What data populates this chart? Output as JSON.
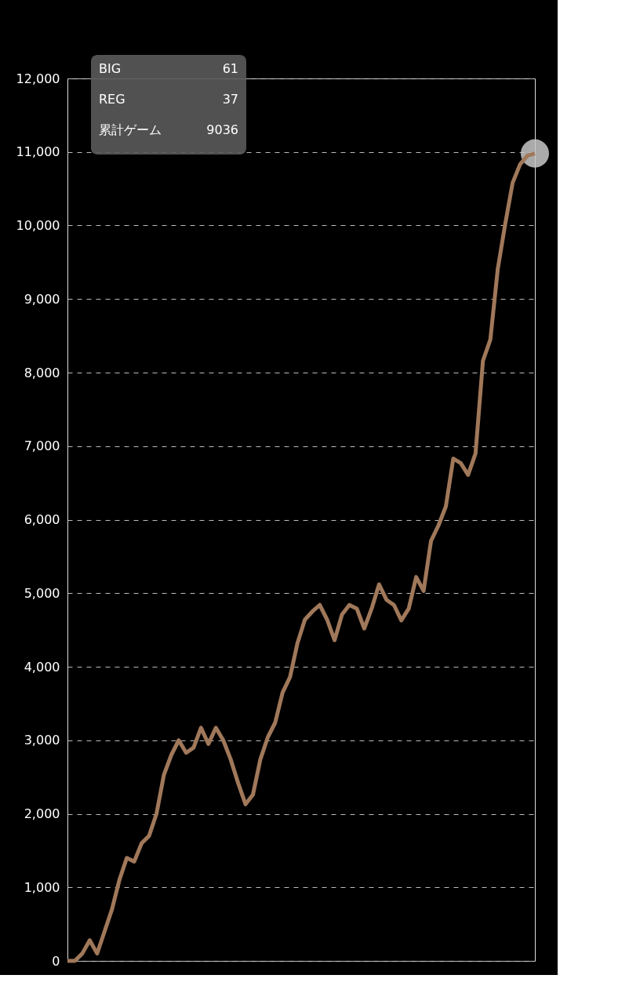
{
  "chart_data": {
    "type": "line",
    "categories": [
      null,
      null,
      null,
      null,
      null,
      null,
      null,
      null,
      null,
      null,
      null,
      null,
      null,
      null,
      null,
      null,
      null,
      null,
      null,
      null,
      null,
      null,
      null,
      null,
      null,
      null,
      null,
      null,
      null,
      null,
      null,
      null,
      null,
      null,
      null,
      null,
      null,
      null,
      null,
      null,
      null,
      null,
      null,
      null,
      null,
      null,
      null,
      null,
      null,
      null,
      null,
      null,
      null,
      null,
      null,
      null,
      null,
      null,
      null,
      null,
      null,
      null,
      null,
      null
    ],
    "series": [
      {
        "color": "#a0785a",
        "values": [
          0,
          0,
          100,
          280,
          100,
          400,
          700,
          1100,
          1400,
          1350,
          1600,
          1700,
          2000,
          2530,
          2800,
          3000,
          2830,
          2900,
          3170,
          2950,
          3170,
          3000,
          2740,
          2420,
          2130,
          2260,
          2740,
          3040,
          3240,
          3650,
          3860,
          4320,
          4640,
          4750,
          4840,
          4640,
          4360,
          4710,
          4840,
          4790,
          4520,
          4790,
          5120,
          4910,
          4840,
          4630,
          4790,
          5220,
          5030,
          5710,
          5920,
          6180,
          6830,
          6770,
          6610,
          6900,
          8160,
          8450,
          9410,
          10020,
          10580,
          10830,
          10950,
          10980
        ]
      },
      {
        "type": "scatter",
        "color": "#c8c8c8",
        "marker": "circle",
        "values": [
          null,
          null,
          null,
          null,
          null,
          null,
          null,
          null,
          null,
          null,
          null,
          null,
          null,
          null,
          null,
          null,
          null,
          null,
          null,
          null,
          null,
          null,
          null,
          null,
          null,
          null,
          null,
          null,
          null,
          null,
          null,
          null,
          null,
          null,
          null,
          null,
          null,
          null,
          null,
          null,
          null,
          null,
          null,
          null,
          null,
          null,
          null,
          null,
          null,
          null,
          null,
          null,
          null,
          null,
          null,
          null,
          null,
          null,
          null,
          null,
          null,
          null,
          null,
          10980
        ]
      }
    ],
    "ylim": [
      0,
      12000
    ],
    "yticks": [
      0,
      {
        "value": 1000,
        "label": "1,000"
      },
      {
        "value": 2000,
        "label": "2,000"
      },
      {
        "value": 3000,
        "label": "3,000"
      },
      {
        "value": 4000,
        "label": "4,000"
      },
      {
        "value": 5000,
        "label": "5,000"
      },
      {
        "value": 6000,
        "label": "6,000"
      },
      {
        "value": 7000,
        "label": "7,000"
      },
      {
        "value": 8000,
        "label": "8,000"
      },
      {
        "value": 9000,
        "label": "9,000"
      },
      {
        "value": 10000,
        "label": "10,000"
      },
      {
        "value": 11000,
        "label": "11,000"
      },
      {
        "value": 12000,
        "label": "12,000"
      }
    ],
    "tick_labels": "y",
    "grid": "y",
    "marker": "none",
    "line_style": "solid",
    "annotations": [
      "BIG",
      "61",
      "REG",
      "37",
      "累計ゲーム",
      "9036"
    ]
  }
}
